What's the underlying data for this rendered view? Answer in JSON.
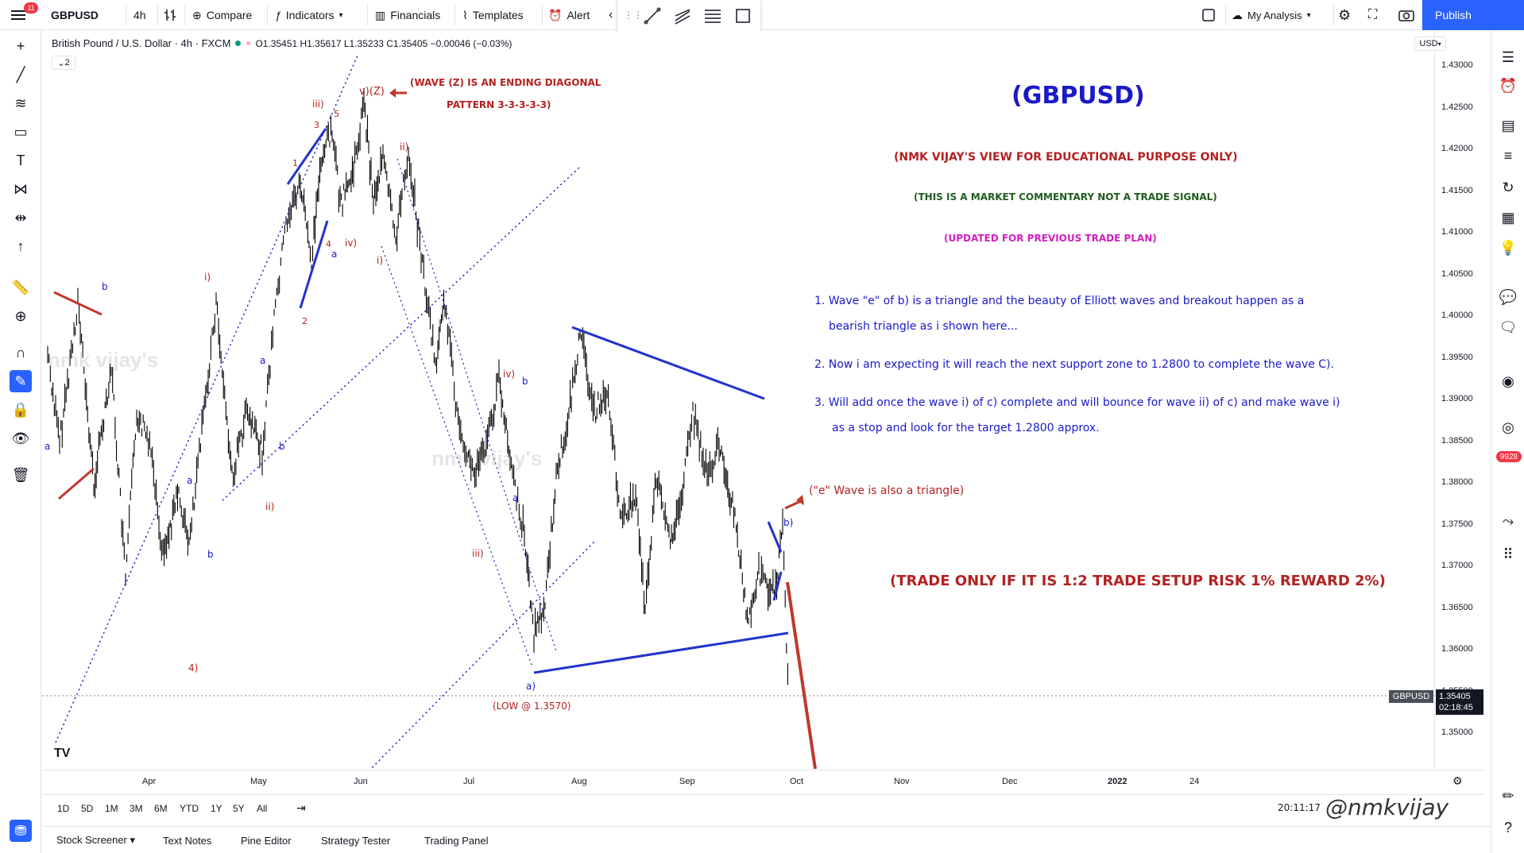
{
  "topbar": {
    "notif_count": "11",
    "symbol": "GBPUSD",
    "interval": "4h",
    "compare": "Compare",
    "indicators": "Indicators",
    "financials": "Financials",
    "templates": "Templates",
    "alert": "Alert",
    "my_analysis": "My Analysis",
    "publish": "Publish"
  },
  "legend": {
    "title": "British Pound / U.S. Dollar · 4h · FXCM",
    "ohlc": "O1.35451 H1.35617 L1.35233 C1.35405 −0.00046 (−0.03%)",
    "collapse": "2"
  },
  "price_axis": {
    "currency": "USD",
    "ticks": [
      "1.43000",
      "1.42500",
      "1.42000",
      "1.41500",
      "1.41000",
      "1.40500",
      "1.40000",
      "1.39500",
      "1.39000",
      "1.38500",
      "1.38000",
      "1.37500",
      "1.37000",
      "1.36500",
      "1.36000",
      "1.35500",
      "1.35000"
    ],
    "symbol_tag": "GBPUSD",
    "last_price": "1.35405",
    "countdown": "02:18:45"
  },
  "time_axis": {
    "ticks": [
      "Apr",
      "May",
      "Jun",
      "Jul",
      "Aug",
      "Sep",
      "Oct",
      "Nov",
      "Dec",
      "2022",
      "24"
    ]
  },
  "range_bar": {
    "ranges": [
      "1D",
      "5D",
      "1M",
      "3M",
      "6M",
      "YTD",
      "1Y",
      "5Y",
      "All"
    ],
    "clock": "20:11:17"
  },
  "bottom_panel": {
    "tabs": [
      "Stock Screener",
      "Text Notes",
      "Pine Editor",
      "Strategy Tester",
      "Trading Panel"
    ]
  },
  "right_badge": "9928",
  "annotations": {
    "title": "(GBPUSD)",
    "disclaimer1": "(NMK VIJAY'S VIEW FOR EDUCATIONAL PURPOSE ONLY)",
    "disclaimer2": "(THIS IS A MARKET COMMENTARY NOT A TRADE SIGNAL)",
    "updated": "(UPDATED FOR PREVIOUS TRADE PLAN)",
    "point1a": "1. Wave \"e\" of b) is a triangle and the beauty of Elliott waves and breakout happen as a",
    "point1b": "bearish triangle as i shown here...",
    "point2": "2. Now i am expecting it will reach the next support zone to 1.2800 to complete the wave C).",
    "point3a": "3. Will add once the wave i) of c) complete and will bounce for wave ii) of c) and make wave i)",
    "point3b": "as a stop and look for the target 1.2800 approx.",
    "e_triangle": "(\"e\" Wave is also a triangle)",
    "trade_rule": "(TRADE ONLY IF IT IS 1:2 TRADE SETUP RISK 1% REWARD 2%)",
    "wave_z1": "(WAVE (Z) IS AN ENDING DIAGONAL",
    "wave_z2": "PATTERN 3-3-3-3-3)",
    "low_label": "(LOW @ 1.3570)",
    "watermark": "nmk vijay's",
    "signature": "@nmkvijay"
  },
  "wave_labels": {
    "vZ": "v)(Z)",
    "iii": "iii)",
    "ii": "ii)",
    "i": "i)",
    "iv": "iv)",
    "iii2": "iii)",
    "iv2": "iv)",
    "ii2": "ii)",
    "i2": "i)",
    "four": "4)",
    "a_low": "a)",
    "b_right": "b)",
    "n1": "1",
    "n2": "2",
    "n3": "3",
    "n4": "4",
    "n5": "5",
    "a": "a",
    "b": "b"
  },
  "colors": {
    "accent": "#2962ff",
    "trendline_blue": "#2233cc",
    "trendline_red": "#c0392b",
    "candle": "#000000"
  }
}
